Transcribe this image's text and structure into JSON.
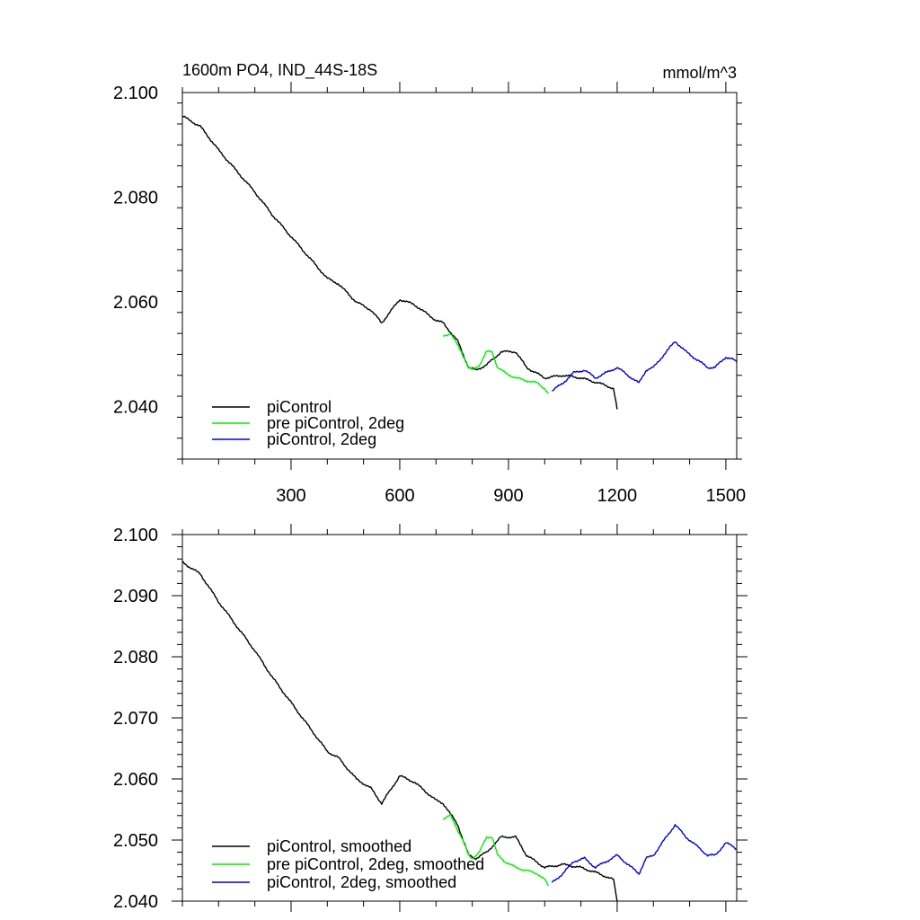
{
  "chart_data": [
    {
      "type": "line",
      "title": "1600m PO4, IND_44S-18S",
      "units": "mmol/m^3",
      "xlabel": "",
      "ylabel": "",
      "xlim": [
        0,
        1530
      ],
      "ylim": [
        2.03,
        2.1
      ],
      "x_ticks": [
        300,
        600,
        900,
        1200,
        1500
      ],
      "y_ticks": [
        2.04,
        2.06,
        2.08,
        2.1
      ],
      "y_tick_labels": [
        "2.040",
        "2.060",
        "2.080",
        "2.100"
      ],
      "legend_position": "bottom-left",
      "series": [
        {
          "name": "piControl",
          "color": "#000000",
          "x": [
            0,
            50,
            100,
            150,
            200,
            250,
            300,
            350,
            400,
            430,
            480,
            520,
            550,
            600,
            640,
            660,
            700,
            720,
            760,
            790,
            810,
            840,
            880,
            920,
            950,
            1000,
            1050,
            1100,
            1150,
            1190,
            1200
          ],
          "y": [
            2.0955,
            2.0935,
            2.089,
            2.085,
            2.081,
            2.0765,
            2.0725,
            2.0685,
            2.0645,
            2.0635,
            2.06,
            2.0585,
            2.056,
            2.0605,
            2.0595,
            2.0585,
            2.0565,
            2.056,
            2.0525,
            2.0475,
            2.047,
            2.048,
            2.0505,
            2.0505,
            2.0475,
            2.0455,
            2.046,
            2.0455,
            2.0445,
            2.0435,
            2.0395
          ]
        },
        {
          "name": "pre piControl, 2deg",
          "color": "#00ee00",
          "x": [
            720,
            740,
            770,
            790,
            800,
            820,
            840,
            855,
            870,
            890,
            920,
            950,
            980,
            1000,
            1010
          ],
          "y": [
            2.0535,
            2.054,
            2.0505,
            2.0475,
            2.047,
            2.048,
            2.0505,
            2.0505,
            2.0475,
            2.0465,
            2.0455,
            2.045,
            2.0445,
            2.0435,
            2.0425
          ]
        },
        {
          "name": "piControl, 2deg",
          "color": "#0000dd",
          "x": [
            1020,
            1050,
            1080,
            1110,
            1140,
            1170,
            1200,
            1230,
            1260,
            1280,
            1300,
            1330,
            1360,
            1390,
            1420,
            1450,
            1470,
            1500,
            1520,
            1530
          ],
          "y": [
            2.043,
            2.0445,
            2.0465,
            2.047,
            2.0455,
            2.0465,
            2.0475,
            2.046,
            2.0445,
            2.047,
            2.0475,
            2.05,
            2.0525,
            2.0505,
            2.049,
            2.0475,
            2.0475,
            2.0495,
            2.049,
            2.0485
          ]
        }
      ]
    },
    {
      "type": "line",
      "title": "",
      "xlabel": "",
      "ylabel": "",
      "xlim": [
        0,
        1530
      ],
      "ylim": [
        2.04,
        2.1
      ],
      "x_ticks": [
        300,
        600,
        900,
        1200,
        1500
      ],
      "y_ticks": [
        2.04,
        2.05,
        2.06,
        2.07,
        2.08,
        2.09,
        2.1
      ],
      "y_tick_labels": [
        "2.040",
        "2.050",
        "2.060",
        "2.070",
        "2.080",
        "2.090",
        "2.100"
      ],
      "legend_position": "bottom-left",
      "series": [
        {
          "name": "piControl, smoothed",
          "color": "#000000",
          "x": [
            0,
            50,
            100,
            150,
            200,
            250,
            300,
            350,
            400,
            430,
            480,
            520,
            550,
            600,
            640,
            660,
            700,
            720,
            760,
            790,
            810,
            840,
            880,
            920,
            950,
            1000,
            1050,
            1100,
            1150,
            1190,
            1200
          ],
          "y": [
            2.0955,
            2.0935,
            2.089,
            2.085,
            2.081,
            2.0765,
            2.0725,
            2.0685,
            2.0645,
            2.0635,
            2.06,
            2.0585,
            2.056,
            2.0605,
            2.0595,
            2.0585,
            2.0565,
            2.056,
            2.0525,
            2.0475,
            2.047,
            2.048,
            2.0505,
            2.0505,
            2.0475,
            2.0455,
            2.046,
            2.0455,
            2.0445,
            2.0435,
            2.04
          ]
        },
        {
          "name": "pre piControl, 2deg, smoothed",
          "color": "#00ee00",
          "x": [
            720,
            740,
            770,
            790,
            800,
            820,
            840,
            855,
            870,
            890,
            920,
            950,
            980,
            1000,
            1010
          ],
          "y": [
            2.0535,
            2.054,
            2.0505,
            2.0475,
            2.047,
            2.048,
            2.0505,
            2.0505,
            2.0475,
            2.0465,
            2.0455,
            2.045,
            2.0445,
            2.0435,
            2.0425
          ]
        },
        {
          "name": "piControl, 2deg, smoothed",
          "color": "#0000dd",
          "x": [
            1020,
            1050,
            1080,
            1110,
            1140,
            1170,
            1200,
            1230,
            1260,
            1280,
            1300,
            1330,
            1360,
            1390,
            1420,
            1450,
            1470,
            1500,
            1520,
            1530
          ],
          "y": [
            2.043,
            2.0445,
            2.0465,
            2.047,
            2.0455,
            2.0465,
            2.0475,
            2.046,
            2.0445,
            2.047,
            2.0475,
            2.05,
            2.0525,
            2.0505,
            2.049,
            2.0475,
            2.0475,
            2.0495,
            2.049,
            2.0485
          ]
        }
      ]
    }
  ]
}
